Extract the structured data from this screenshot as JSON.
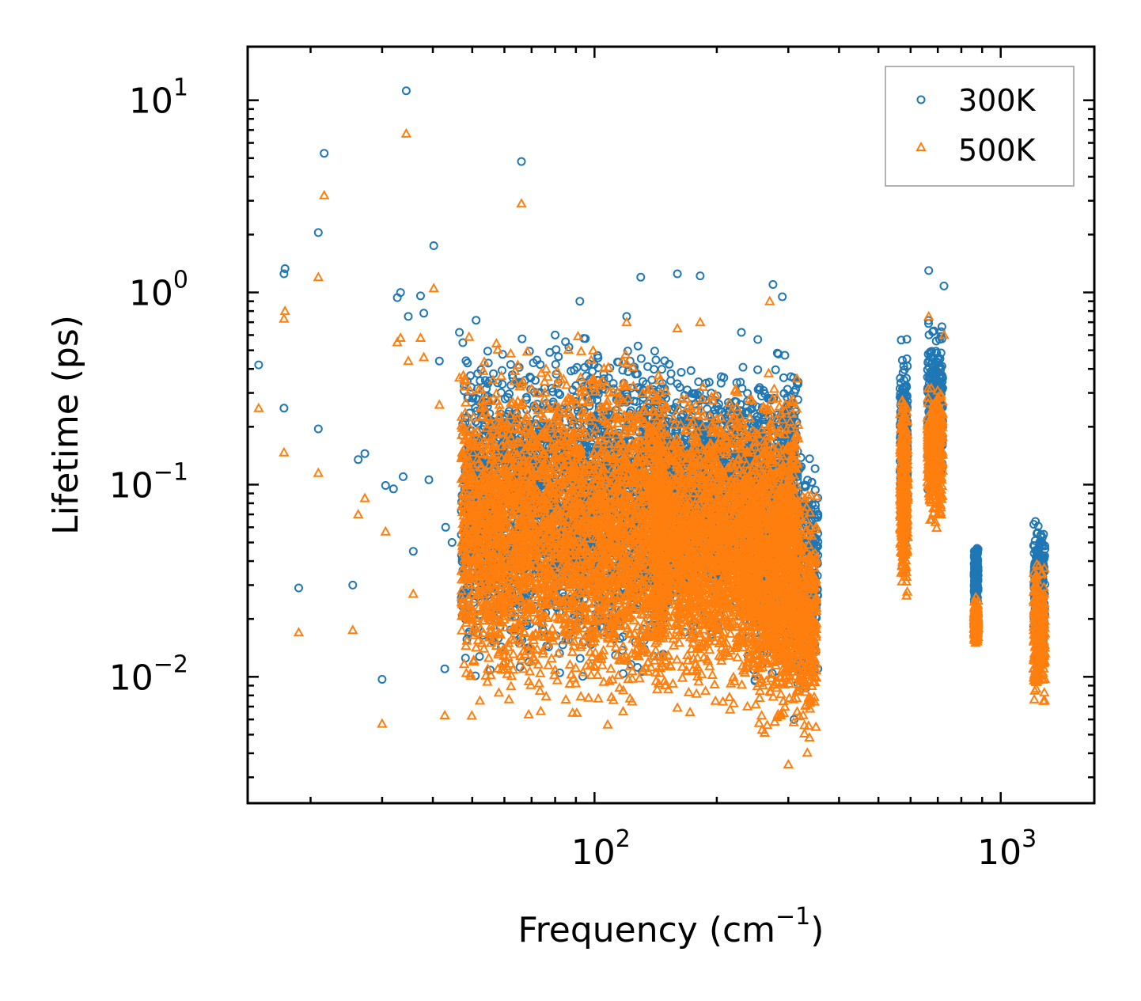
{
  "chart_data": {
    "type": "scatter",
    "xscale": "log",
    "yscale": "log",
    "xlim": [
      14,
      1700
    ],
    "ylim": [
      0.0022,
      19
    ],
    "xlabel": "Frequency (cm",
    "xlabel_sup": "−1",
    "xlabel_end": ")",
    "ylabel": "Lifetime (ps)",
    "x_ticks": [
      {
        "value": 100,
        "base": "10",
        "exp": "2"
      },
      {
        "value": 1000,
        "base": "10",
        "exp": "3"
      }
    ],
    "y_ticks": [
      {
        "value": 10,
        "base": "10",
        "exp": "1"
      },
      {
        "value": 1,
        "base": "10",
        "exp": "0"
      },
      {
        "value": 0.1,
        "base": "10",
        "exp": "−1"
      },
      {
        "value": 0.01,
        "base": "10",
        "exp": "−2"
      }
    ],
    "legend_position": "top-right",
    "series": [
      {
        "name": "300K",
        "marker": "circle",
        "color": "#1f77b4",
        "points": [
          [
            14.9,
            0.42
          ],
          [
            17.2,
            1.25
          ],
          [
            17.3,
            1.33
          ],
          [
            17.2,
            0.25
          ],
          [
            18.7,
            0.029
          ],
          [
            20.9,
            2.05
          ],
          [
            20.9,
            0.195
          ],
          [
            21.6,
            5.3
          ],
          [
            25.4,
            0.03
          ],
          [
            26.2,
            0.135
          ],
          [
            27.2,
            0.145
          ],
          [
            30.0,
            0.0097
          ],
          [
            30.6,
            0.099
          ],
          [
            32.0,
            0.095
          ],
          [
            32.7,
            0.94
          ],
          [
            33.3,
            1.0
          ],
          [
            33.8,
            0.11
          ],
          [
            34.4,
            11.2
          ],
          [
            34.8,
            0.75
          ],
          [
            35.8,
            0.045
          ],
          [
            37.3,
            0.96
          ],
          [
            38.0,
            0.78
          ],
          [
            39.1,
            0.106
          ],
          [
            40.2,
            1.75
          ],
          [
            41.5,
            0.44
          ],
          [
            42.8,
            0.011
          ],
          [
            43.0,
            0.06
          ],
          [
            44.6,
            0.05
          ],
          [
            46.5,
            0.62
          ],
          [
            55.6,
            0.055
          ],
          [
            66.1,
            4.8
          ],
          [
            80.0,
            0.6
          ],
          [
            92.0,
            0.9
          ],
          [
            120.0,
            0.75
          ],
          [
            130.0,
            1.2
          ],
          [
            160.0,
            1.25
          ],
          [
            182.0,
            1.22
          ],
          [
            230.0,
            0.62
          ],
          [
            255.0,
            0.32
          ],
          [
            275.0,
            1.1
          ],
          [
            290.0,
            0.95
          ],
          [
            310.0,
            0.006
          ],
          [
            340.0,
            0.032
          ],
          [
            352.0,
            0.025
          ],
          [
            665.0,
            1.3
          ],
          [
            725.0,
            1.08
          ]
        ]
      },
      {
        "name": "500K",
        "marker": "triangle",
        "color": "#ff7f0e",
        "points": [
          [
            14.9,
            0.25
          ],
          [
            17.2,
            0.73
          ],
          [
            17.3,
            0.8
          ],
          [
            17.2,
            0.147
          ],
          [
            18.7,
            0.017
          ],
          [
            20.9,
            1.2
          ],
          [
            20.9,
            0.115
          ],
          [
            21.6,
            3.2
          ],
          [
            25.4,
            0.0175
          ],
          [
            26.2,
            0.07
          ],
          [
            27.2,
            0.085
          ],
          [
            30.0,
            0.0057
          ],
          [
            30.6,
            0.057
          ],
          [
            32.7,
            0.55
          ],
          [
            33.3,
            0.58
          ],
          [
            34.4,
            6.7
          ],
          [
            34.8,
            0.44
          ],
          [
            35.8,
            0.027
          ],
          [
            37.3,
            0.58
          ],
          [
            38.0,
            0.46
          ],
          [
            40.2,
            1.05
          ],
          [
            41.5,
            0.26
          ],
          [
            42.8,
            0.0063
          ],
          [
            46.5,
            0.36
          ],
          [
            66.1,
            2.9
          ],
          [
            120.0,
            0.7
          ],
          [
            160.0,
            0.65
          ],
          [
            182.0,
            0.7
          ],
          [
            270.0,
            0.9
          ],
          [
            300.0,
            0.0035
          ],
          [
            352.0,
            0.019
          ],
          [
            665.0,
            0.75
          ],
          [
            725.0,
            0.6
          ]
        ]
      }
    ],
    "clusters": [
      {
        "series": 0,
        "n": 2500,
        "x": [
          47,
          150
        ],
        "y": [
          0.008,
          0.8
        ],
        "seed": 11
      },
      {
        "series": 1,
        "n": 3000,
        "x": [
          47,
          150
        ],
        "y": [
          0.005,
          0.7
        ],
        "seed": 12
      },
      {
        "series": 0,
        "n": 1400,
        "x": [
          140,
          245
        ],
        "y": [
          0.012,
          0.55
        ],
        "seed": 13
      },
      {
        "series": 1,
        "n": 1800,
        "x": [
          140,
          245
        ],
        "y": [
          0.005,
          0.45
        ],
        "seed": 14
      },
      {
        "series": 0,
        "n": 900,
        "x": [
          245,
          318
        ],
        "y": [
          0.006,
          0.75
        ],
        "seed": 15
      },
      {
        "series": 1,
        "n": 1200,
        "x": [
          245,
          318
        ],
        "y": [
          0.0035,
          0.45
        ],
        "seed": 16
      },
      {
        "series": 0,
        "n": 260,
        "x": [
          315,
          355
        ],
        "y": [
          0.0055,
          0.2
        ],
        "seed": 17
      },
      {
        "series": 1,
        "n": 300,
        "x": [
          315,
          352
        ],
        "y": [
          0.0035,
          0.12
        ],
        "seed": 18
      },
      {
        "series": 0,
        "n": 360,
        "x": [
          565,
          590
        ],
        "y": [
          0.03,
          0.72
        ],
        "seed": 19
      },
      {
        "series": 1,
        "n": 380,
        "x": [
          565,
          590
        ],
        "y": [
          0.023,
          0.36
        ],
        "seed": 20
      },
      {
        "series": 0,
        "n": 320,
        "x": [
          660,
          720
        ],
        "y": [
          0.07,
          0.85
        ],
        "seed": 21
      },
      {
        "series": 1,
        "n": 340,
        "x": [
          660,
          720
        ],
        "y": [
          0.053,
          0.42
        ],
        "seed": 22
      },
      {
        "series": 0,
        "n": 200,
        "x": [
          860,
          880
        ],
        "y": [
          0.022,
          0.052
        ],
        "seed": 23
      },
      {
        "series": 1,
        "n": 220,
        "x": [
          860,
          880
        ],
        "y": [
          0.014,
          0.027
        ],
        "seed": 24
      },
      {
        "series": 0,
        "n": 260,
        "x": [
          1205,
          1285
        ],
        "y": [
          0.011,
          0.076
        ],
        "seed": 25
      },
      {
        "series": 1,
        "n": 300,
        "x": [
          1205,
          1285
        ],
        "y": [
          0.006,
          0.048
        ],
        "seed": 26
      }
    ]
  }
}
